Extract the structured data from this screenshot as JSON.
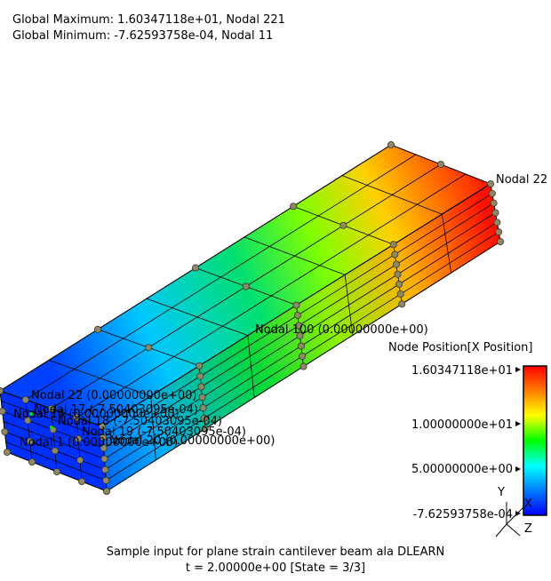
{
  "global_max": "Global Maximum: 1.60347118e+01, Nodal 221",
  "global_min": "Global Minimum: -7.62593758e-04, Nodal 11",
  "node_labels": [
    "Nodal 22",
    "Nodal 100 (0.00000000e+00)",
    "Nodal 22 (0.00000000e+00)",
    "Nodal 17 (-7.50403095e-04)",
    "Nodal 14 (0.00000000e+00)",
    "Nodal 18 (-7.50403095e-04)",
    "Nodal 19 (-7.50403095e-04)",
    "Nodal 1 (0.00000000e+00)",
    "Nodal 20 (0.00000000e+00)"
  ],
  "legend": {
    "title": "Node Position[X Position]",
    "ticks": [
      "1.60347118e+01",
      "1.00000000e+01",
      "5.00000000e+00",
      "-7.62593758e-04"
    ],
    "colors": [
      "#ff0000",
      "#ff8000",
      "#ffff00",
      "#00ff00",
      "#00ffff",
      "#0080ff",
      "#0000ff"
    ]
  },
  "axes": {
    "y": "Y",
    "x": "X",
    "z": "Z"
  },
  "footer": {
    "title": "Sample input for plane strain cantilever beam ala DLEARN",
    "time": "t = 2.00000e+00 [State = 3/3]"
  },
  "colors": {
    "node": "#8f8866",
    "node_stroke": "#3c3a2a",
    "edge": "#000000"
  }
}
